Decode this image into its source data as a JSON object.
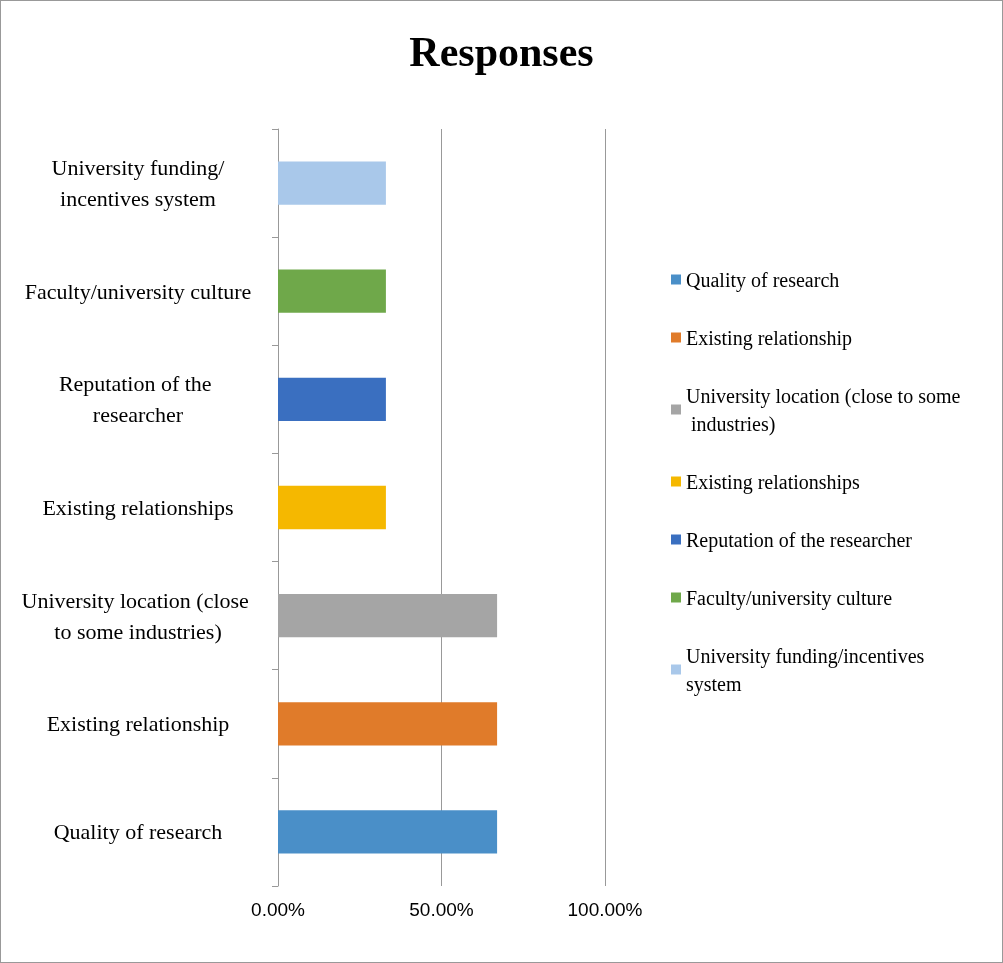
{
  "chart_data": {
    "type": "bar",
    "orientation": "horizontal",
    "title": "Responses",
    "categories": [
      "University funding/incentives system",
      "Faculty/university culture",
      "Reputation of the researcher",
      "Existing relationships",
      "University location (close to some industries)",
      "Existing relationship",
      "Quality of research"
    ],
    "series": [
      {
        "name": "Quality of research",
        "color": "#4a8fc8",
        "values": [
          null,
          null,
          null,
          null,
          null,
          null,
          67
        ]
      },
      {
        "name": "Existing relationship",
        "color": "#e07b2a",
        "values": [
          null,
          null,
          null,
          null,
          null,
          67,
          null
        ]
      },
      {
        "name": "University location (close to some industries)",
        "color": "#a5a5a5",
        "values": [
          null,
          null,
          null,
          null,
          67,
          null,
          null
        ]
      },
      {
        "name": "Existing relationships",
        "color": "#f5b800",
        "values": [
          null,
          null,
          null,
          33,
          null,
          null,
          null
        ]
      },
      {
        "name": "Reputation of the researcher",
        "color": "#3a6fc0",
        "values": [
          null,
          null,
          33,
          null,
          null,
          null,
          null
        ]
      },
      {
        "name": "Faculty/university culture",
        "color": "#6fa84a",
        "values": [
          null,
          33,
          null,
          null,
          null,
          null,
          null
        ]
      },
      {
        "name": "University funding/incentives system",
        "color": "#a9c8ea",
        "values": [
          33,
          null,
          null,
          null,
          null,
          null,
          null
        ]
      }
    ],
    "xlim": [
      0,
      100
    ],
    "xticks": [
      {
        "value": 0,
        "label": "0.00%"
      },
      {
        "value": 50,
        "label": "50.00%"
      },
      {
        "value": 100,
        "label": "100.00%"
      }
    ],
    "grid": "x",
    "legend": "right"
  }
}
